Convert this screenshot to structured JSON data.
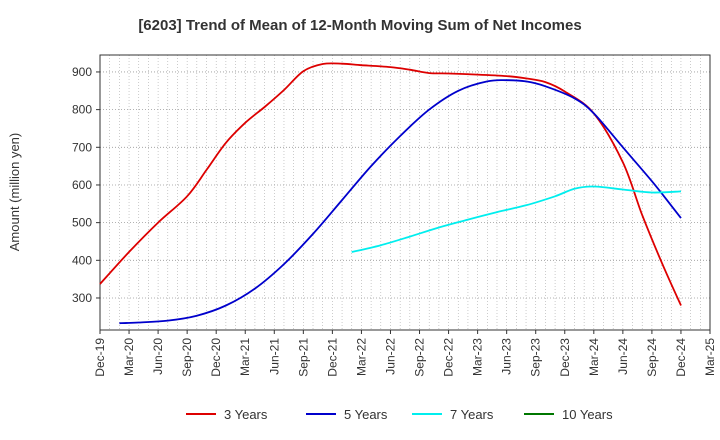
{
  "chart_data": {
    "type": "line",
    "title": "[6203]  Trend of Mean of 12-Month Moving Sum of Net Incomes",
    "ylabel": "Amount (million yen)",
    "xlabel": "",
    "ylim": [
      215,
      945
    ],
    "yticks": [
      300,
      400,
      500,
      600,
      700,
      800,
      900
    ],
    "x_ticks": [
      "Dec-19",
      "Mar-20",
      "Jun-20",
      "Sep-20",
      "Dec-20",
      "Mar-21",
      "Jun-21",
      "Sep-21",
      "Dec-21",
      "Mar-22",
      "Jun-22",
      "Sep-22",
      "Dec-22",
      "Mar-23",
      "Jun-23",
      "Sep-23",
      "Dec-23",
      "Mar-24",
      "Jun-24",
      "Sep-24",
      "Dec-24",
      "Mar-25"
    ],
    "grid": true,
    "legend_position": "bottom",
    "series": [
      {
        "name": "3 Years",
        "color": "#dd0000",
        "points": [
          {
            "x": "Dec-19",
            "y": 337
          },
          {
            "x": "Mar-20",
            "y": 422
          },
          {
            "x": "Jun-20",
            "y": 500
          },
          {
            "x": "Sep-20",
            "y": 570
          },
          {
            "x": "Nov-20",
            "y": 640
          },
          {
            "x": "Jan-21",
            "y": 712
          },
          {
            "x": "Mar-21",
            "y": 765
          },
          {
            "x": "May-21",
            "y": 807
          },
          {
            "x": "Jul-21",
            "y": 852
          },
          {
            "x": "Sep-21",
            "y": 902
          },
          {
            "x": "Nov-21",
            "y": 921
          },
          {
            "x": "Jan-22",
            "y": 922
          },
          {
            "x": "Mar-22",
            "y": 918
          },
          {
            "x": "Jun-22",
            "y": 913
          },
          {
            "x": "Aug-22",
            "y": 906
          },
          {
            "x": "Oct-22",
            "y": 897
          },
          {
            "x": "Dec-22",
            "y": 896
          },
          {
            "x": "Mar-23",
            "y": 893
          },
          {
            "x": "Jun-23",
            "y": 889
          },
          {
            "x": "Aug-23",
            "y": 883
          },
          {
            "x": "Oct-23",
            "y": 873
          },
          {
            "x": "Dec-23",
            "y": 848
          },
          {
            "x": "Mar-24",
            "y": 790
          },
          {
            "x": "Jun-24",
            "y": 660
          },
          {
            "x": "Aug-24",
            "y": 520
          },
          {
            "x": "Oct-24",
            "y": 395
          },
          {
            "x": "Dec-24",
            "y": 280
          }
        ]
      },
      {
        "name": "5 Years",
        "color": "#0000cc",
        "points": [
          {
            "x": "Feb-20",
            "y": 233
          },
          {
            "x": "Apr-20",
            "y": 235
          },
          {
            "x": "Jul-20",
            "y": 240
          },
          {
            "x": "Oct-20",
            "y": 253
          },
          {
            "x": "Jan-21",
            "y": 280
          },
          {
            "x": "Apr-21",
            "y": 325
          },
          {
            "x": "Jul-21",
            "y": 390
          },
          {
            "x": "Oct-21",
            "y": 470
          },
          {
            "x": "Jan-22",
            "y": 560
          },
          {
            "x": "Apr-22",
            "y": 650
          },
          {
            "x": "Jul-22",
            "y": 730
          },
          {
            "x": "Oct-22",
            "y": 800
          },
          {
            "x": "Jan-23",
            "y": 850
          },
          {
            "x": "Apr-23",
            "y": 875
          },
          {
            "x": "Jun-23",
            "y": 878
          },
          {
            "x": "Aug-23",
            "y": 875
          },
          {
            "x": "Oct-23",
            "y": 862
          },
          {
            "x": "Jan-24",
            "y": 830
          },
          {
            "x": "Mar-24",
            "y": 790
          },
          {
            "x": "Jun-24",
            "y": 700
          },
          {
            "x": "Sep-24",
            "y": 610
          },
          {
            "x": "Nov-24",
            "y": 545
          },
          {
            "x": "Dec-24",
            "y": 512
          }
        ]
      },
      {
        "name": "7 Years",
        "color": "#00eeee",
        "points": [
          {
            "x": "Feb-22",
            "y": 422
          },
          {
            "x": "May-22",
            "y": 440
          },
          {
            "x": "Aug-22",
            "y": 463
          },
          {
            "x": "Nov-22",
            "y": 487
          },
          {
            "x": "Feb-23",
            "y": 508
          },
          {
            "x": "May-23",
            "y": 528
          },
          {
            "x": "Aug-23",
            "y": 546
          },
          {
            "x": "Nov-23",
            "y": 570
          },
          {
            "x": "Jan-24",
            "y": 590
          },
          {
            "x": "Mar-24",
            "y": 596
          },
          {
            "x": "Jun-24",
            "y": 588
          },
          {
            "x": "Sep-24",
            "y": 580
          },
          {
            "x": "Dec-24",
            "y": 583
          }
        ]
      },
      {
        "name": "10 Years",
        "color": "#007700",
        "points": []
      }
    ]
  }
}
